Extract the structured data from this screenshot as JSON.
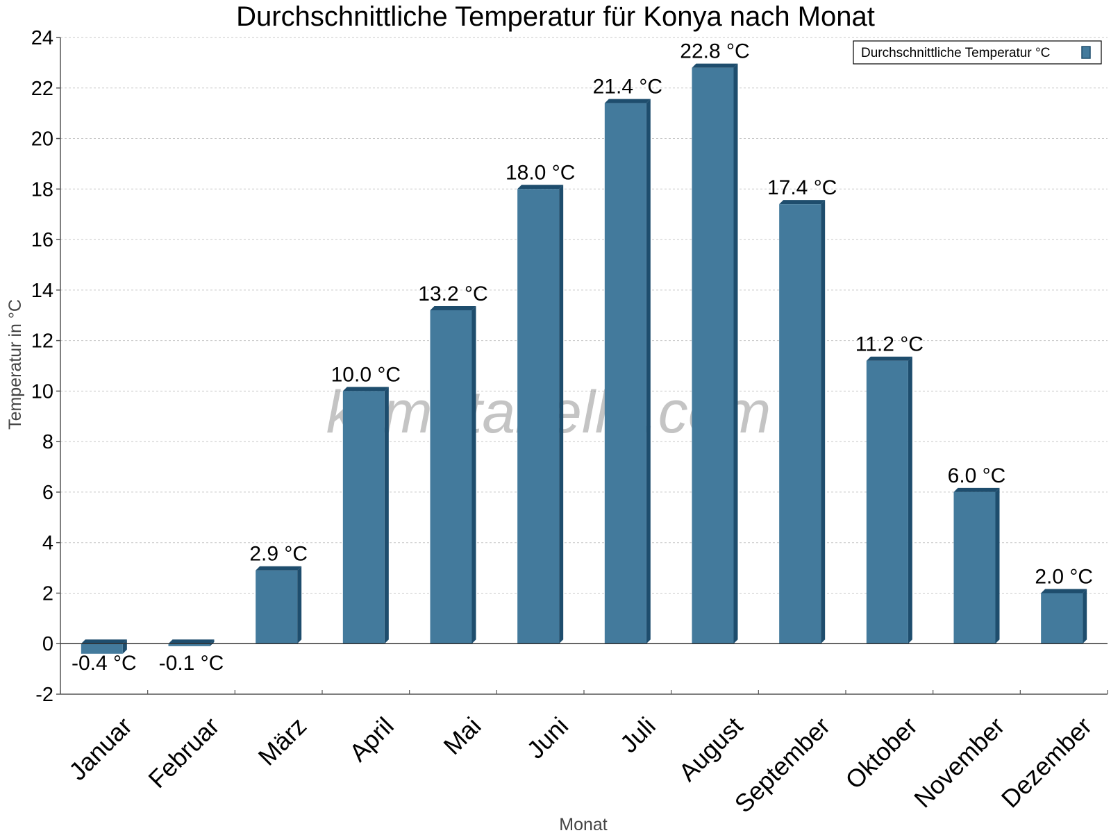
{
  "chart_data": {
    "type": "bar",
    "title": "Durchschnittliche Temperatur für Konya nach Monat",
    "xlabel": "Monat",
    "ylabel": "Temperatur in °C",
    "ylim": [
      -2,
      24
    ],
    "yticks": [
      -2,
      0,
      2,
      4,
      6,
      8,
      10,
      12,
      14,
      16,
      18,
      20,
      22,
      24
    ],
    "grid": true,
    "legend_position": "top-right",
    "categories": [
      "Januar",
      "Februar",
      "März",
      "April",
      "Mai",
      "Juni",
      "Juli",
      "August",
      "September",
      "Oktober",
      "November",
      "Dezember"
    ],
    "series": [
      {
        "name": "Durchschnittliche Temperatur °C",
        "values": [
          -0.4,
          -0.1,
          2.9,
          10.0,
          13.2,
          18.0,
          21.4,
          22.8,
          17.4,
          11.2,
          6.0,
          2.0
        ],
        "labels": [
          "-0.4 °C",
          "-0.1 °C",
          "2.9 °C",
          "10.0 °C",
          "13.2 °C",
          "18.0 °C",
          "21.4 °C",
          "22.8 °C",
          "17.4 °C",
          "11.2 °C",
          "6.0 °C",
          "2.0 °C"
        ]
      }
    ],
    "colors": {
      "bar": "#437a9c",
      "bar_dark": "#1e4d6d",
      "grid": "#c8c8c8",
      "axis": "#555555"
    },
    "watermark": "klimatabelle.com"
  }
}
